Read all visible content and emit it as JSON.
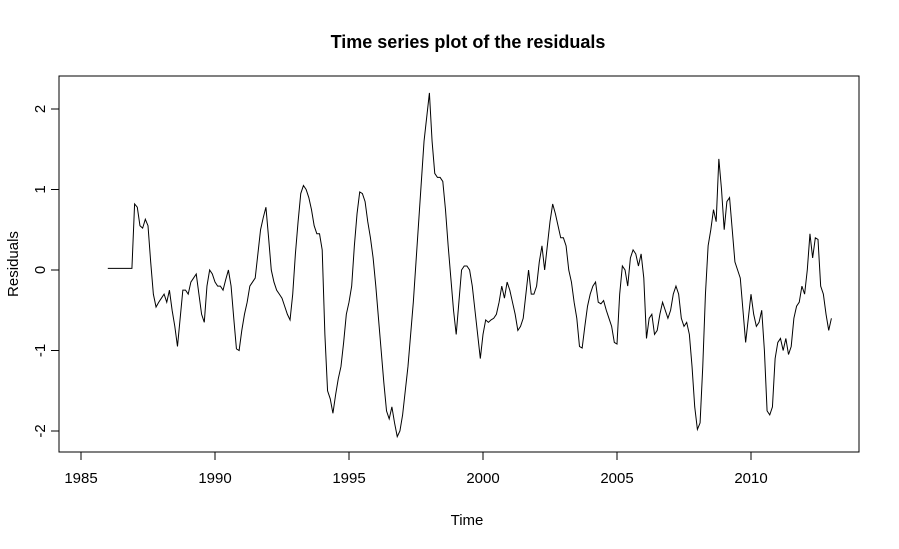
{
  "chart_data": {
    "type": "line",
    "title": "Time series plot of the residuals",
    "xlabel": "Time",
    "ylabel": "Residuals",
    "xlim": [
      1985,
      2015
    ],
    "ylim": [
      -2.3,
      2.4
    ],
    "xticks": [
      1985,
      1990,
      1995,
      2000,
      2005,
      2010
    ],
    "yticks": [
      -2,
      -1,
      0,
      1,
      2
    ],
    "xtick_labels": [
      "1985",
      "1990",
      "1995",
      "2000",
      "2005",
      "2010"
    ],
    "ytick_labels": [
      "-2",
      "-1",
      "0",
      "1",
      "2"
    ],
    "grid": false,
    "legend": "none",
    "line_color": "#000000",
    "series": [
      {
        "points": [
          [
            1986.0,
            0.02
          ],
          [
            1986.5,
            0.02
          ],
          [
            1986.9,
            0.02
          ],
          [
            1987.0,
            0.82
          ],
          [
            1987.1,
            0.78
          ],
          [
            1987.2,
            0.55
          ],
          [
            1987.3,
            0.52
          ],
          [
            1987.4,
            0.63
          ],
          [
            1987.5,
            0.55
          ],
          [
            1987.6,
            0.1
          ],
          [
            1987.7,
            -0.3
          ],
          [
            1987.8,
            -0.46
          ],
          [
            1987.9,
            -0.4
          ],
          [
            1988.0,
            -0.35
          ],
          [
            1988.1,
            -0.3
          ],
          [
            1988.2,
            -0.4
          ],
          [
            1988.3,
            -0.25
          ],
          [
            1988.4,
            -0.5
          ],
          [
            1988.5,
            -0.7
          ],
          [
            1988.6,
            -0.95
          ],
          [
            1988.7,
            -0.6
          ],
          [
            1988.8,
            -0.25
          ],
          [
            1988.9,
            -0.25
          ],
          [
            1989.0,
            -0.3
          ],
          [
            1989.1,
            -0.15
          ],
          [
            1989.2,
            -0.1
          ],
          [
            1989.3,
            -0.05
          ],
          [
            1989.4,
            -0.3
          ],
          [
            1989.5,
            -0.55
          ],
          [
            1989.6,
            -0.65
          ],
          [
            1989.7,
            -0.2
          ],
          [
            1989.8,
            0.0
          ],
          [
            1989.9,
            -0.05
          ],
          [
            1990.0,
            -0.15
          ],
          [
            1990.1,
            -0.2
          ],
          [
            1990.2,
            -0.2
          ],
          [
            1990.3,
            -0.25
          ],
          [
            1990.4,
            -0.12
          ],
          [
            1990.5,
            0.0
          ],
          [
            1990.6,
            -0.2
          ],
          [
            1990.7,
            -0.6
          ],
          [
            1990.8,
            -0.98
          ],
          [
            1990.9,
            -1.0
          ],
          [
            1991.0,
            -0.75
          ],
          [
            1991.1,
            -0.55
          ],
          [
            1991.2,
            -0.4
          ],
          [
            1991.3,
            -0.2
          ],
          [
            1991.4,
            -0.15
          ],
          [
            1991.5,
            -0.1
          ],
          [
            1991.6,
            0.2
          ],
          [
            1991.7,
            0.5
          ],
          [
            1991.8,
            0.65
          ],
          [
            1991.9,
            0.78
          ],
          [
            1992.0,
            0.4
          ],
          [
            1992.1,
            0.0
          ],
          [
            1992.2,
            -0.15
          ],
          [
            1992.3,
            -0.25
          ],
          [
            1992.4,
            -0.3
          ],
          [
            1992.5,
            -0.35
          ],
          [
            1992.6,
            -0.45
          ],
          [
            1992.7,
            -0.55
          ],
          [
            1992.8,
            -0.62
          ],
          [
            1992.9,
            -0.3
          ],
          [
            1993.0,
            0.2
          ],
          [
            1993.1,
            0.6
          ],
          [
            1993.2,
            0.95
          ],
          [
            1993.3,
            1.05
          ],
          [
            1993.4,
            1.0
          ],
          [
            1993.5,
            0.9
          ],
          [
            1993.6,
            0.75
          ],
          [
            1993.7,
            0.55
          ],
          [
            1993.8,
            0.45
          ],
          [
            1993.9,
            0.45
          ],
          [
            1994.0,
            0.25
          ],
          [
            1994.1,
            -0.8
          ],
          [
            1994.2,
            -1.5
          ],
          [
            1994.3,
            -1.6
          ],
          [
            1994.4,
            -1.78
          ],
          [
            1994.5,
            -1.55
          ],
          [
            1994.6,
            -1.35
          ],
          [
            1994.7,
            -1.2
          ],
          [
            1994.8,
            -0.9
          ],
          [
            1994.9,
            -0.55
          ],
          [
            1995.0,
            -0.4
          ],
          [
            1995.1,
            -0.2
          ],
          [
            1995.2,
            0.3
          ],
          [
            1995.3,
            0.7
          ],
          [
            1995.4,
            0.97
          ],
          [
            1995.5,
            0.95
          ],
          [
            1995.6,
            0.85
          ],
          [
            1995.7,
            0.6
          ],
          [
            1995.8,
            0.4
          ],
          [
            1995.9,
            0.15
          ],
          [
            1996.0,
            -0.2
          ],
          [
            1996.1,
            -0.6
          ],
          [
            1996.2,
            -1.0
          ],
          [
            1996.3,
            -1.4
          ],
          [
            1996.4,
            -1.75
          ],
          [
            1996.5,
            -1.85
          ],
          [
            1996.6,
            -1.7
          ],
          [
            1996.7,
            -1.9
          ],
          [
            1996.8,
            -2.07
          ],
          [
            1996.9,
            -2.0
          ],
          [
            1997.0,
            -1.8
          ],
          [
            1997.1,
            -1.5
          ],
          [
            1997.2,
            -1.2
          ],
          [
            1997.3,
            -0.8
          ],
          [
            1997.4,
            -0.4
          ],
          [
            1997.5,
            0.1
          ],
          [
            1997.6,
            0.6
          ],
          [
            1997.7,
            1.1
          ],
          [
            1997.8,
            1.6
          ],
          [
            1997.9,
            1.9
          ],
          [
            1998.0,
            2.2
          ],
          [
            1998.1,
            1.6
          ],
          [
            1998.2,
            1.2
          ],
          [
            1998.3,
            1.15
          ],
          [
            1998.4,
            1.15
          ],
          [
            1998.5,
            1.1
          ],
          [
            1998.6,
            0.75
          ],
          [
            1998.7,
            0.3
          ],
          [
            1998.8,
            -0.1
          ],
          [
            1998.9,
            -0.5
          ],
          [
            1999.0,
            -0.8
          ],
          [
            1999.1,
            -0.4
          ],
          [
            1999.2,
            0.0
          ],
          [
            1999.3,
            0.05
          ],
          [
            1999.4,
            0.05
          ],
          [
            1999.5,
            0.0
          ],
          [
            1999.6,
            -0.2
          ],
          [
            1999.7,
            -0.5
          ],
          [
            1999.8,
            -0.8
          ],
          [
            1999.9,
            -1.1
          ],
          [
            2000.0,
            -0.8
          ],
          [
            2000.1,
            -0.62
          ],
          [
            2000.2,
            -0.65
          ],
          [
            2000.3,
            -0.62
          ],
          [
            2000.4,
            -0.6
          ],
          [
            2000.5,
            -0.55
          ],
          [
            2000.6,
            -0.4
          ],
          [
            2000.7,
            -0.2
          ],
          [
            2000.8,
            -0.35
          ],
          [
            2000.9,
            -0.15
          ],
          [
            2001.0,
            -0.25
          ],
          [
            2001.1,
            -0.4
          ],
          [
            2001.2,
            -0.55
          ],
          [
            2001.3,
            -0.75
          ],
          [
            2001.4,
            -0.7
          ],
          [
            2001.5,
            -0.6
          ],
          [
            2001.6,
            -0.3
          ],
          [
            2001.7,
            0.0
          ],
          [
            2001.8,
            -0.3
          ],
          [
            2001.9,
            -0.3
          ],
          [
            2002.0,
            -0.2
          ],
          [
            2002.1,
            0.1
          ],
          [
            2002.2,
            0.3
          ],
          [
            2002.3,
            0.0
          ],
          [
            2002.4,
            0.3
          ],
          [
            2002.5,
            0.6
          ],
          [
            2002.6,
            0.82
          ],
          [
            2002.7,
            0.7
          ],
          [
            2002.8,
            0.55
          ],
          [
            2002.9,
            0.4
          ],
          [
            2003.0,
            0.4
          ],
          [
            2003.1,
            0.3
          ],
          [
            2003.2,
            0.0
          ],
          [
            2003.3,
            -0.15
          ],
          [
            2003.4,
            -0.4
          ],
          [
            2003.5,
            -0.6
          ],
          [
            2003.6,
            -0.95
          ],
          [
            2003.7,
            -0.97
          ],
          [
            2003.8,
            -0.7
          ],
          [
            2003.9,
            -0.45
          ],
          [
            2004.0,
            -0.3
          ],
          [
            2004.1,
            -0.2
          ],
          [
            2004.2,
            -0.15
          ],
          [
            2004.3,
            -0.4
          ],
          [
            2004.4,
            -0.42
          ],
          [
            2004.5,
            -0.38
          ],
          [
            2004.6,
            -0.5
          ],
          [
            2004.7,
            -0.6
          ],
          [
            2004.8,
            -0.7
          ],
          [
            2004.9,
            -0.9
          ],
          [
            2005.0,
            -0.92
          ],
          [
            2005.1,
            -0.3
          ],
          [
            2005.2,
            0.05
          ],
          [
            2005.3,
            0.0
          ],
          [
            2005.4,
            -0.2
          ],
          [
            2005.5,
            0.15
          ],
          [
            2005.6,
            0.25
          ],
          [
            2005.7,
            0.2
          ],
          [
            2005.8,
            0.05
          ],
          [
            2005.9,
            0.2
          ],
          [
            2006.0,
            -0.1
          ],
          [
            2006.1,
            -0.85
          ],
          [
            2006.2,
            -0.6
          ],
          [
            2006.3,
            -0.55
          ],
          [
            2006.4,
            -0.8
          ],
          [
            2006.5,
            -0.75
          ],
          [
            2006.6,
            -0.55
          ],
          [
            2006.7,
            -0.4
          ],
          [
            2006.8,
            -0.5
          ],
          [
            2006.9,
            -0.6
          ],
          [
            2007.0,
            -0.5
          ],
          [
            2007.1,
            -0.3
          ],
          [
            2007.2,
            -0.2
          ],
          [
            2007.3,
            -0.3
          ],
          [
            2007.4,
            -0.6
          ],
          [
            2007.5,
            -0.7
          ],
          [
            2007.6,
            -0.65
          ],
          [
            2007.7,
            -0.8
          ],
          [
            2007.8,
            -1.2
          ],
          [
            2007.9,
            -1.7
          ],
          [
            2008.0,
            -1.98
          ],
          [
            2008.1,
            -1.9
          ],
          [
            2008.2,
            -1.2
          ],
          [
            2008.3,
            -0.3
          ],
          [
            2008.4,
            0.3
          ],
          [
            2008.5,
            0.5
          ],
          [
            2008.6,
            0.75
          ],
          [
            2008.7,
            0.6
          ],
          [
            2008.8,
            1.38
          ],
          [
            2008.9,
            1.0
          ],
          [
            2009.0,
            0.5
          ],
          [
            2009.1,
            0.85
          ],
          [
            2009.2,
            0.9
          ],
          [
            2009.3,
            0.5
          ],
          [
            2009.4,
            0.1
          ],
          [
            2009.5,
            0.0
          ],
          [
            2009.6,
            -0.1
          ],
          [
            2009.7,
            -0.5
          ],
          [
            2009.8,
            -0.9
          ],
          [
            2009.9,
            -0.6
          ],
          [
            2010.0,
            -0.3
          ],
          [
            2010.1,
            -0.55
          ],
          [
            2010.2,
            -0.7
          ],
          [
            2010.3,
            -0.65
          ],
          [
            2010.4,
            -0.5
          ],
          [
            2010.5,
            -1.0
          ],
          [
            2010.6,
            -1.75
          ],
          [
            2010.7,
            -1.8
          ],
          [
            2010.8,
            -1.7
          ],
          [
            2010.9,
            -1.1
          ],
          [
            2011.0,
            -0.9
          ],
          [
            2011.1,
            -0.85
          ],
          [
            2011.2,
            -1.0
          ],
          [
            2011.3,
            -0.85
          ],
          [
            2011.4,
            -1.05
          ],
          [
            2011.5,
            -0.95
          ],
          [
            2011.6,
            -0.6
          ],
          [
            2011.7,
            -0.45
          ],
          [
            2011.8,
            -0.4
          ],
          [
            2011.9,
            -0.2
          ],
          [
            2012.0,
            -0.3
          ],
          [
            2012.1,
            0.0
          ],
          [
            2012.2,
            0.45
          ],
          [
            2012.3,
            0.15
          ],
          [
            2012.4,
            0.4
          ],
          [
            2012.5,
            0.38
          ],
          [
            2012.6,
            -0.2
          ],
          [
            2012.7,
            -0.3
          ],
          [
            2012.8,
            -0.55
          ],
          [
            2012.9,
            -0.75
          ],
          [
            2013.0,
            -0.6
          ]
        ]
      }
    ]
  }
}
